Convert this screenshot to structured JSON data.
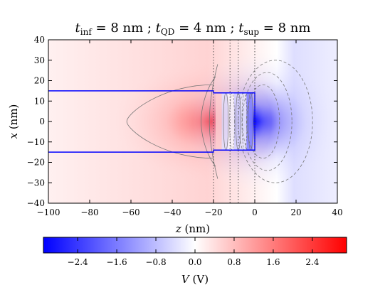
{
  "chart_data": {
    "type": "heatmap",
    "title": "t_inf = 8 nm ; t_QD = 4 nm ; t_sup = 8 nm",
    "title_parts": [
      {
        "base": "t",
        "sub": "inf",
        "rest": " = 8 nm ; "
      },
      {
        "base": "t",
        "sub": "QD",
        "rest": " = 4 nm ; "
      },
      {
        "base": "t",
        "sub": "sup",
        "rest": " = 8 nm"
      }
    ],
    "xlabel": "z (nm)",
    "ylabel": "x (nm)",
    "xlim": [
      -100,
      40
    ],
    "ylim": [
      -40,
      40
    ],
    "xticks": [
      -100,
      -80,
      -60,
      -40,
      -20,
      0,
      20,
      40
    ],
    "yticks": [
      -40,
      -30,
      -20,
      -10,
      0,
      10,
      20,
      30,
      40
    ],
    "colorbar": {
      "label": "V (V)",
      "range": [
        -3.1,
        3.1
      ],
      "ticks": [
        -2.4,
        -1.6,
        -0.8,
        0.0,
        0.8,
        1.6,
        2.4
      ],
      "colors": {
        "negative": "#0000ff",
        "zero": "#ffffff",
        "positive": "#ff0000"
      }
    },
    "structure_outline": {
      "color": "#0000ff",
      "rod_x_range": [
        -15,
        15
      ],
      "rod_z_start": -100,
      "qd_z_range": [
        -20,
        0
      ],
      "qd_x_range": [
        -14,
        14
      ]
    },
    "layer_boundaries_z": [
      -20,
      -12,
      -8,
      0
    ],
    "grid": false
  }
}
